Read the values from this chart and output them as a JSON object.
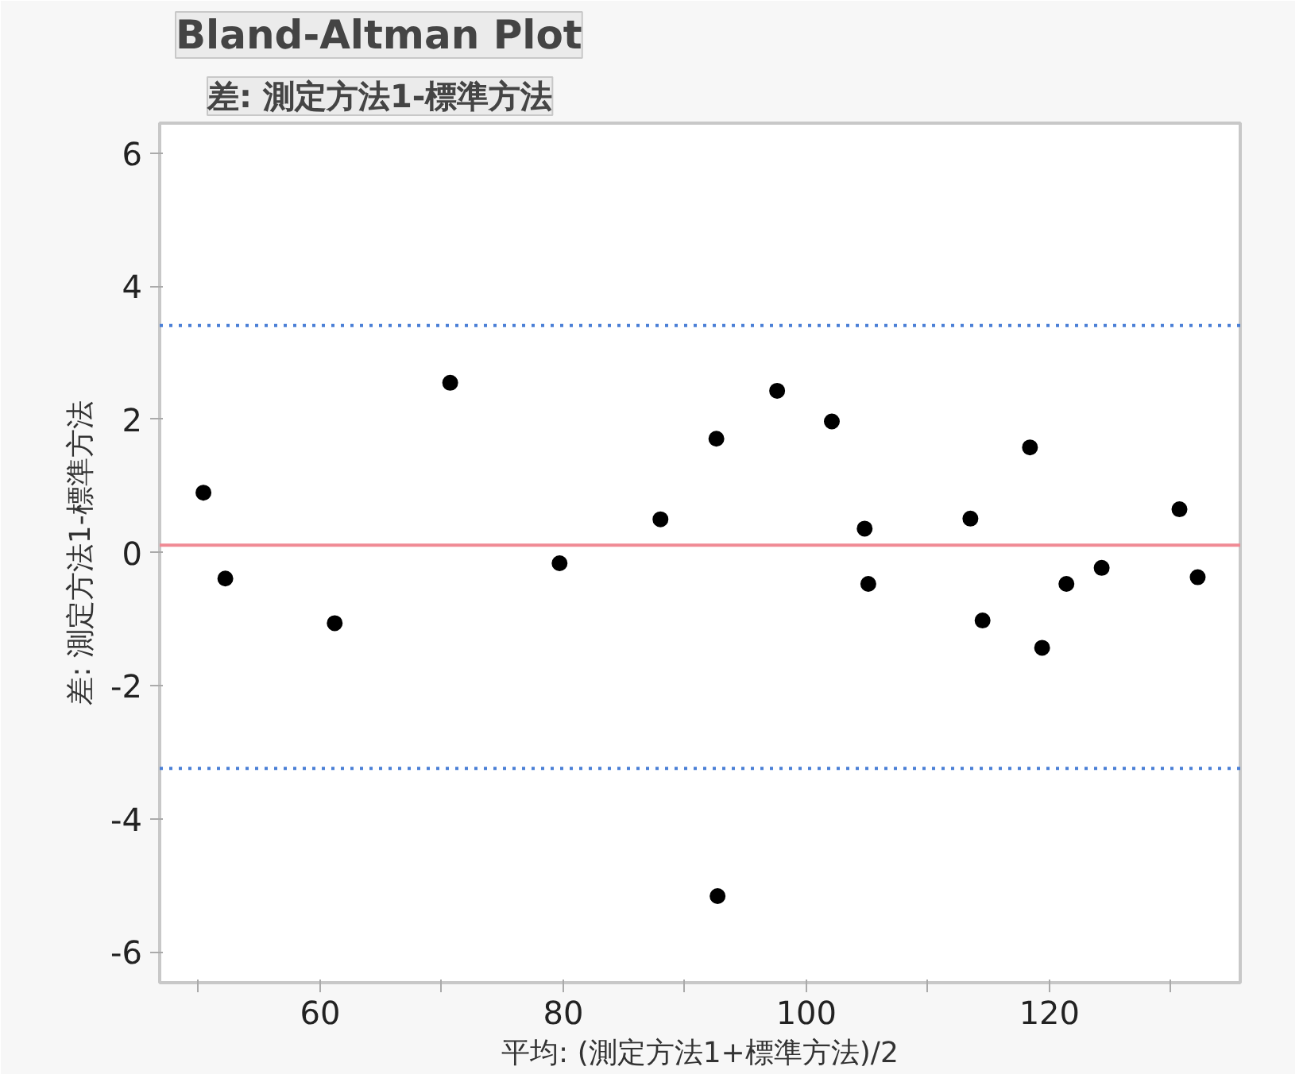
{
  "chart_data": {
    "type": "scatter",
    "title": "Bland-Altman Plot",
    "subtitle": "差: 測定方法1-標準方法",
    "xlabel": "平均: (測定方法1+標準方法)/2",
    "ylabel": "差: 測定方法1-標準方法",
    "x": [
      50.4,
      52.2,
      61.2,
      70.7,
      79.7,
      88.0,
      92.6,
      92.7,
      97.6,
      102.1,
      104.8,
      105.1,
      113.5,
      114.5,
      118.4,
      119.4,
      121.4,
      124.3,
      130.7,
      132.2
    ],
    "values": [
      0.9,
      -0.39,
      -1.06,
      2.55,
      -0.16,
      0.5,
      1.71,
      -5.16,
      2.43,
      1.97,
      0.36,
      -0.47,
      0.51,
      -1.02,
      1.58,
      -1.43,
      -0.47,
      -0.23,
      0.65,
      -0.37
    ],
    "color": "#000000",
    "marker": "circle",
    "xlim": [
      46.8,
      135.7
    ],
    "ylim": [
      -6.46,
      6.45
    ],
    "xticks": [
      {
        "value": 50,
        "label": null
      },
      60,
      {
        "value": 70,
        "label": null
      },
      80,
      {
        "value": 90,
        "label": null
      },
      100,
      {
        "value": 110,
        "label": null
      },
      120,
      {
        "value": 130,
        "label": null
      }
    ],
    "yticks": [
      -6,
      -4,
      -2,
      0,
      2,
      4,
      6
    ],
    "ref_lines": [
      {
        "axis": "y",
        "value": 3.41,
        "label": null,
        "color": "#4a7fd6",
        "line_style": "dotted"
      },
      {
        "axis": "y",
        "value": 0.11,
        "label": null,
        "color": "#f08a94",
        "line_style": "solid"
      },
      {
        "axis": "y",
        "value": -3.24,
        "label": null,
        "color": "#4a7fd6",
        "line_style": "dotted"
      }
    ],
    "grid": false
  }
}
